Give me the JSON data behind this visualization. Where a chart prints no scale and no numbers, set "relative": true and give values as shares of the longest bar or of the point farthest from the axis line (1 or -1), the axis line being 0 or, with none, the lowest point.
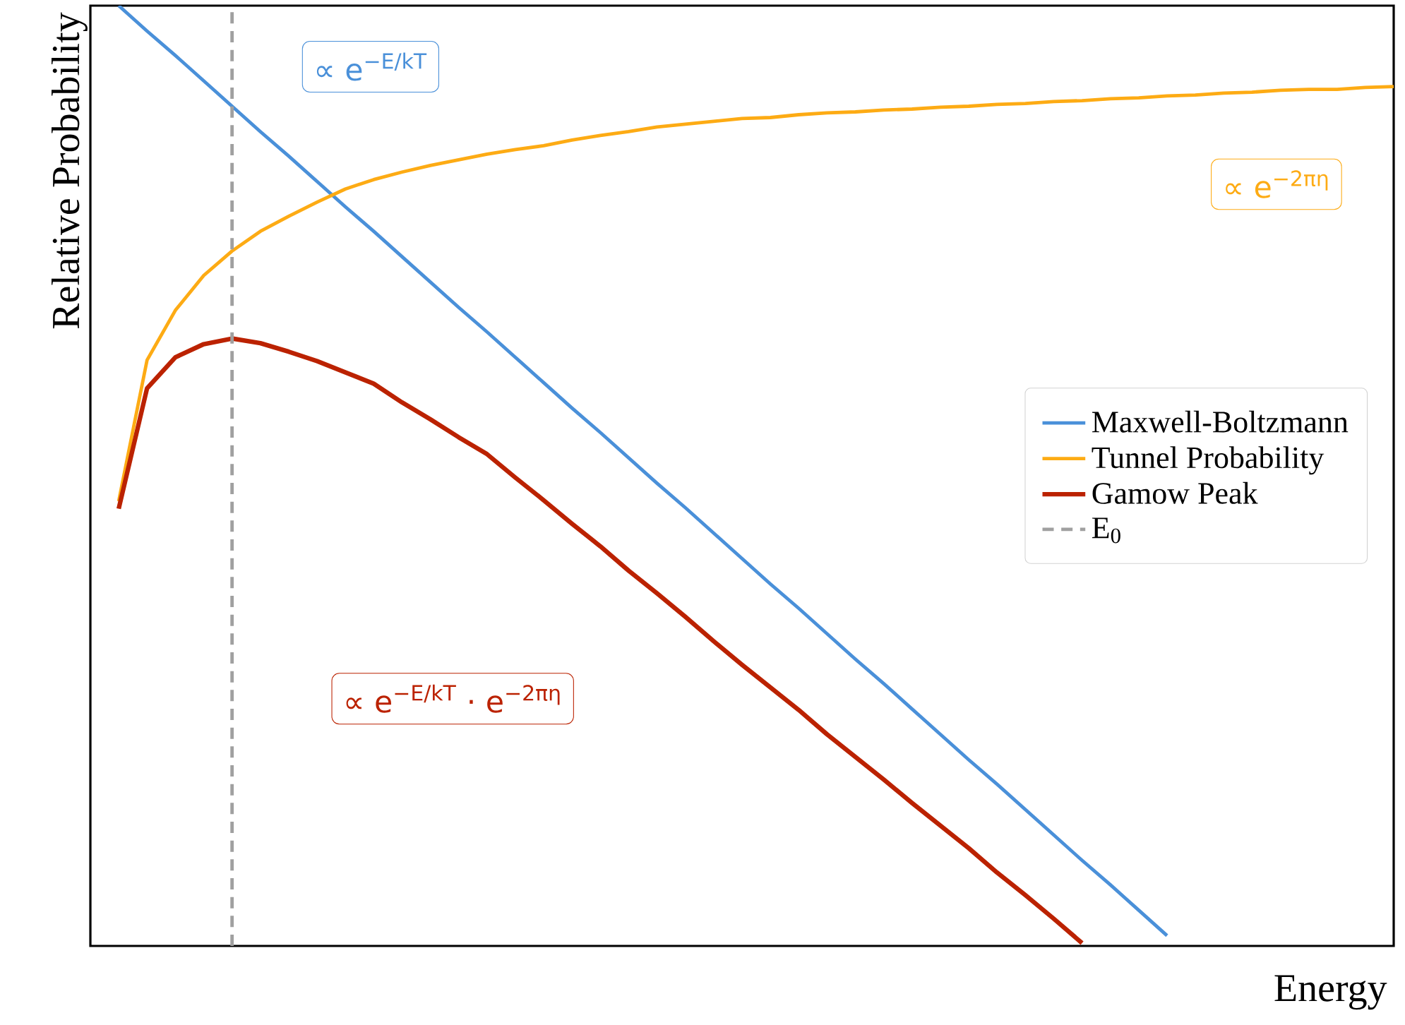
{
  "chart_data": {
    "type": "line",
    "relative": true,
    "xlabel": "Energy",
    "ylabel": "Relative Probability",
    "legend": "right",
    "line_style": "solid",
    "categories": [
      null,
      null,
      null,
      null,
      null,
      null,
      null,
      null,
      null,
      null,
      null,
      null,
      null,
      null,
      null,
      null,
      null,
      null,
      null,
      null,
      null,
      null,
      null,
      null,
      null,
      null,
      null,
      null,
      null,
      null,
      null,
      null,
      null,
      null,
      null,
      null,
      null,
      null,
      null,
      null,
      null,
      null,
      null,
      null,
      null,
      null,
      null
    ],
    "series": [
      {
        "name": "Maxwell-Boltzmann",
        "color": "#4a90d9",
        "values": [
          null,
          1.0,
          0.973,
          0.947,
          0.92,
          0.893,
          0.866,
          0.84,
          0.813,
          0.786,
          0.76,
          0.733,
          0.706,
          0.679,
          0.653,
          0.626,
          0.599,
          0.572,
          0.546,
          0.519,
          0.492,
          0.466,
          0.439,
          0.412,
          0.385,
          0.359,
          0.332,
          0.305,
          0.279,
          0.252,
          0.225,
          0.198,
          0.172,
          0.145,
          0.118,
          0.091,
          0.065,
          0.038,
          0.011,
          null,
          null,
          null,
          null,
          null,
          null,
          null,
          null
        ]
      },
      {
        "name": "Tunnel Probability",
        "color": "#fdab14",
        "values": [
          null,
          0.473,
          0.623,
          0.676,
          0.713,
          0.739,
          0.76,
          0.776,
          0.791,
          0.805,
          0.815,
          0.823,
          0.83,
          0.836,
          0.842,
          0.847,
          0.851,
          0.857,
          0.862,
          0.866,
          0.871,
          0.874,
          0.877,
          0.88,
          0.881,
          0.884,
          0.886,
          0.887,
          0.889,
          0.89,
          0.892,
          0.893,
          0.895,
          0.896,
          0.898,
          0.899,
          0.901,
          0.902,
          0.904,
          0.905,
          0.907,
          0.908,
          0.91,
          0.911,
          0.911,
          0.913,
          0.914
        ]
      },
      {
        "name": "Gamow Peak",
        "color": "#bb2200",
        "values": [
          null,
          0.465,
          0.593,
          0.626,
          0.64,
          0.646,
          0.641,
          0.632,
          0.622,
          0.61,
          0.598,
          0.578,
          0.56,
          0.541,
          0.523,
          0.498,
          0.474,
          0.449,
          0.425,
          0.399,
          0.375,
          0.35,
          0.324,
          0.299,
          0.275,
          0.251,
          0.225,
          0.201,
          0.177,
          0.152,
          0.128,
          0.104,
          0.078,
          0.054,
          0.029,
          0.003,
          null,
          null,
          null,
          null,
          null,
          null,
          null,
          null,
          null,
          null,
          null
        ]
      }
    ],
    "ref_lines": [
      {
        "axis": "x",
        "label": "E$_{0}$",
        "color": "#a0a0a0",
        "line_style": "dashed"
      }
    ],
    "annotations": [
      "∝ e$^{−E/kT}$",
      "∝ e$^{−2πη}$",
      "∝ e$^{−E/kT}$ · e$^{−2πη}$"
    ]
  }
}
